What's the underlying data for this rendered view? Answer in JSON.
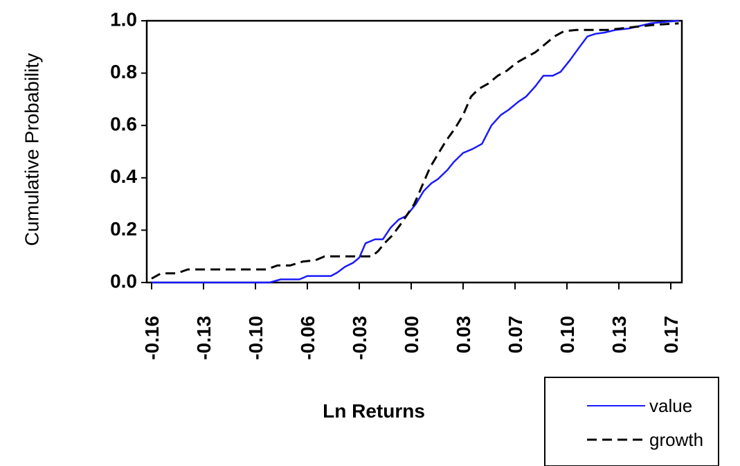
{
  "chart_data": {
    "type": "line",
    "title": "",
    "xlabel": "Ln Returns",
    "ylabel": "Cumulative Probability",
    "xlim": [
      -0.16,
      0.175
    ],
    "ylim": [
      0,
      1
    ],
    "x_ticks": [
      "-0.16",
      "-0.13",
      "-0.10",
      "-0.06",
      "-0.03",
      "0.00",
      "0.03",
      "0.07",
      "0.10",
      "0.13",
      "0.17"
    ],
    "x_tick_values": [
      -0.16,
      -0.127,
      -0.094,
      -0.061,
      -0.028,
      0.005,
      0.038,
      0.071,
      0.104,
      0.137,
      0.17
    ],
    "y_ticks": [
      "0.0",
      "0.2",
      "0.4",
      "0.6",
      "0.8",
      "1.0"
    ],
    "y_tick_values": [
      0,
      0.2,
      0.4,
      0.6,
      0.8,
      1.0
    ],
    "grid": false,
    "legend_position": "bottom-right outside",
    "series": [
      {
        "name": "value",
        "color": "#1a1aff",
        "dash": "solid",
        "points": [
          [
            -0.16,
            0.0
          ],
          [
            -0.085,
            0.0
          ],
          [
            -0.078,
            0.012
          ],
          [
            -0.066,
            0.012
          ],
          [
            -0.061,
            0.025
          ],
          [
            -0.046,
            0.025
          ],
          [
            -0.042,
            0.038
          ],
          [
            -0.037,
            0.06
          ],
          [
            -0.032,
            0.075
          ],
          [
            -0.028,
            0.095
          ],
          [
            -0.024,
            0.15
          ],
          [
            -0.018,
            0.165
          ],
          [
            -0.013,
            0.165
          ],
          [
            -0.008,
            0.21
          ],
          [
            -0.003,
            0.24
          ],
          [
            0.002,
            0.255
          ],
          [
            0.008,
            0.3
          ],
          [
            0.013,
            0.35
          ],
          [
            0.018,
            0.38
          ],
          [
            0.022,
            0.395
          ],
          [
            0.028,
            0.43
          ],
          [
            0.032,
            0.46
          ],
          [
            0.038,
            0.495
          ],
          [
            0.044,
            0.51
          ],
          [
            0.05,
            0.53
          ],
          [
            0.056,
            0.6
          ],
          [
            0.062,
            0.64
          ],
          [
            0.067,
            0.66
          ],
          [
            0.073,
            0.69
          ],
          [
            0.078,
            0.71
          ],
          [
            0.084,
            0.75
          ],
          [
            0.089,
            0.79
          ],
          [
            0.095,
            0.79
          ],
          [
            0.1,
            0.805
          ],
          [
            0.106,
            0.85
          ],
          [
            0.112,
            0.9
          ],
          [
            0.117,
            0.94
          ],
          [
            0.122,
            0.95
          ],
          [
            0.128,
            0.955
          ],
          [
            0.135,
            0.965
          ],
          [
            0.143,
            0.97
          ],
          [
            0.15,
            0.98
          ],
          [
            0.157,
            0.99
          ],
          [
            0.165,
            0.995
          ],
          [
            0.175,
            1.0
          ]
        ]
      },
      {
        "name": "growth",
        "color": "#000000",
        "dash": "dashed",
        "points": [
          [
            -0.16,
            0.015
          ],
          [
            -0.154,
            0.035
          ],
          [
            -0.144,
            0.035
          ],
          [
            -0.137,
            0.05
          ],
          [
            -0.087,
            0.05
          ],
          [
            -0.08,
            0.065
          ],
          [
            -0.072,
            0.065
          ],
          [
            -0.064,
            0.08
          ],
          [
            -0.056,
            0.085
          ],
          [
            -0.05,
            0.1
          ],
          [
            -0.02,
            0.1
          ],
          [
            -0.016,
            0.12
          ],
          [
            -0.012,
            0.15
          ],
          [
            -0.007,
            0.18
          ],
          [
            -0.002,
            0.22
          ],
          [
            0.002,
            0.255
          ],
          [
            0.007,
            0.3
          ],
          [
            0.012,
            0.37
          ],
          [
            0.017,
            0.44
          ],
          [
            0.022,
            0.49
          ],
          [
            0.027,
            0.54
          ],
          [
            0.033,
            0.59
          ],
          [
            0.038,
            0.64
          ],
          [
            0.043,
            0.71
          ],
          [
            0.048,
            0.74
          ],
          [
            0.054,
            0.76
          ],
          [
            0.06,
            0.79
          ],
          [
            0.066,
            0.81
          ],
          [
            0.072,
            0.84
          ],
          [
            0.078,
            0.86
          ],
          [
            0.084,
            0.88
          ],
          [
            0.09,
            0.91
          ],
          [
            0.096,
            0.94
          ],
          [
            0.102,
            0.96
          ],
          [
            0.11,
            0.965
          ],
          [
            0.13,
            0.965
          ],
          [
            0.145,
            0.975
          ],
          [
            0.16,
            0.985
          ],
          [
            0.175,
            0.99
          ]
        ]
      }
    ]
  },
  "legend": {
    "items": [
      {
        "label": "value",
        "color": "#1a1aff",
        "dash": "solid"
      },
      {
        "label": "growth",
        "color": "#000000",
        "dash": "dashed"
      }
    ]
  }
}
